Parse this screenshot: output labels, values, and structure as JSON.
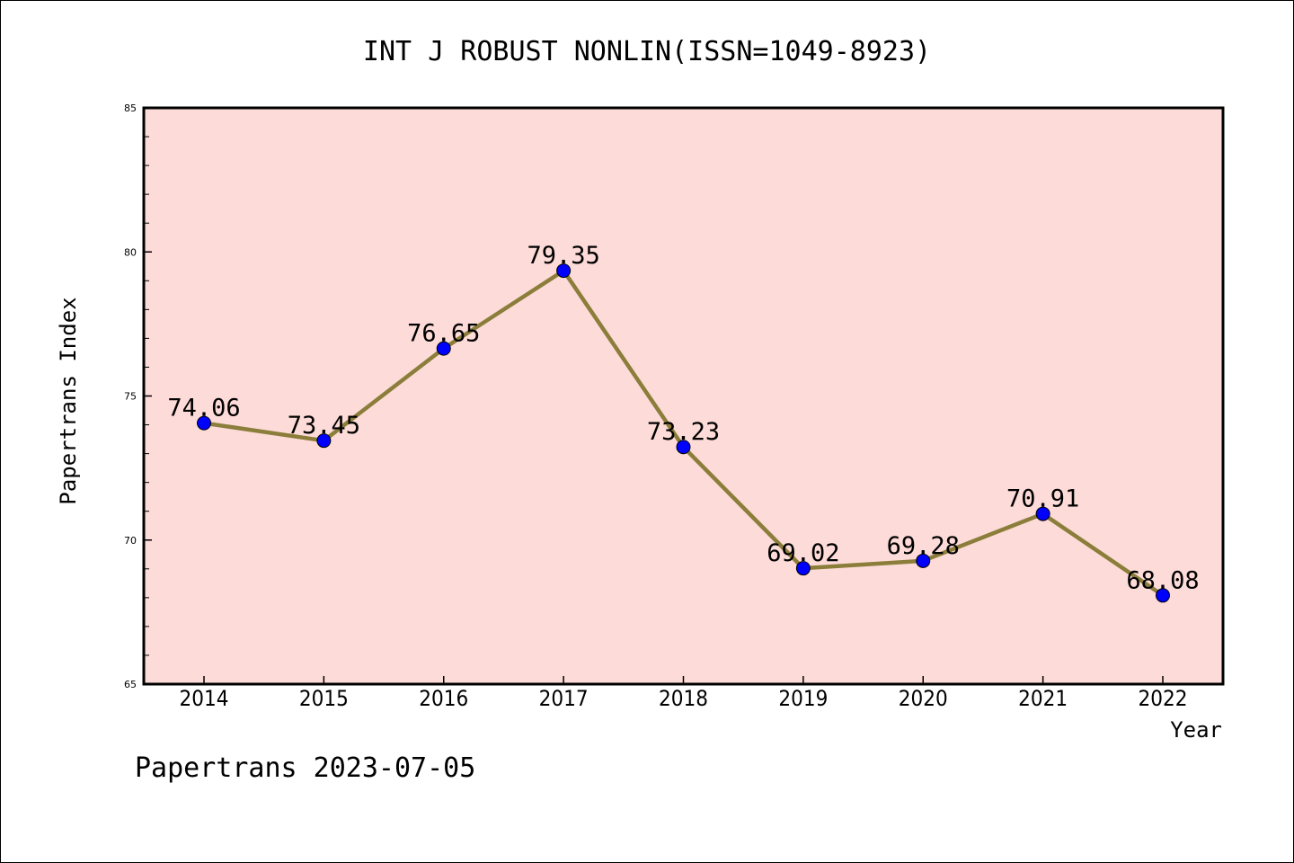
{
  "chart_data": {
    "type": "line",
    "title": "INT J ROBUST NONLIN(ISSN=1049-8923)",
    "xlabel": "Year",
    "ylabel": "Papertrans Index",
    "footer": "Papertrans 2023-07-05",
    "categories": [
      "2014",
      "2015",
      "2016",
      "2017",
      "2018",
      "2019",
      "2020",
      "2021",
      "2022"
    ],
    "series": [
      {
        "values": [
          74.06,
          73.45,
          76.65,
          79.35,
          73.23,
          69.02,
          69.28,
          70.91,
          68.08
        ],
        "labels": [
          "74.06",
          "73.45",
          "76.65",
          "79.35",
          "73.23",
          "69.02",
          "69.28",
          "70.91",
          "68.08"
        ]
      }
    ],
    "ylim": [
      65,
      85
    ],
    "yticks": [
      "65",
      "70",
      "75",
      "80",
      "85"
    ],
    "grid": false,
    "colors": {
      "plot_background": "#fddbd8",
      "line": "#8b7d3a",
      "marker": "#0000ff"
    }
  }
}
